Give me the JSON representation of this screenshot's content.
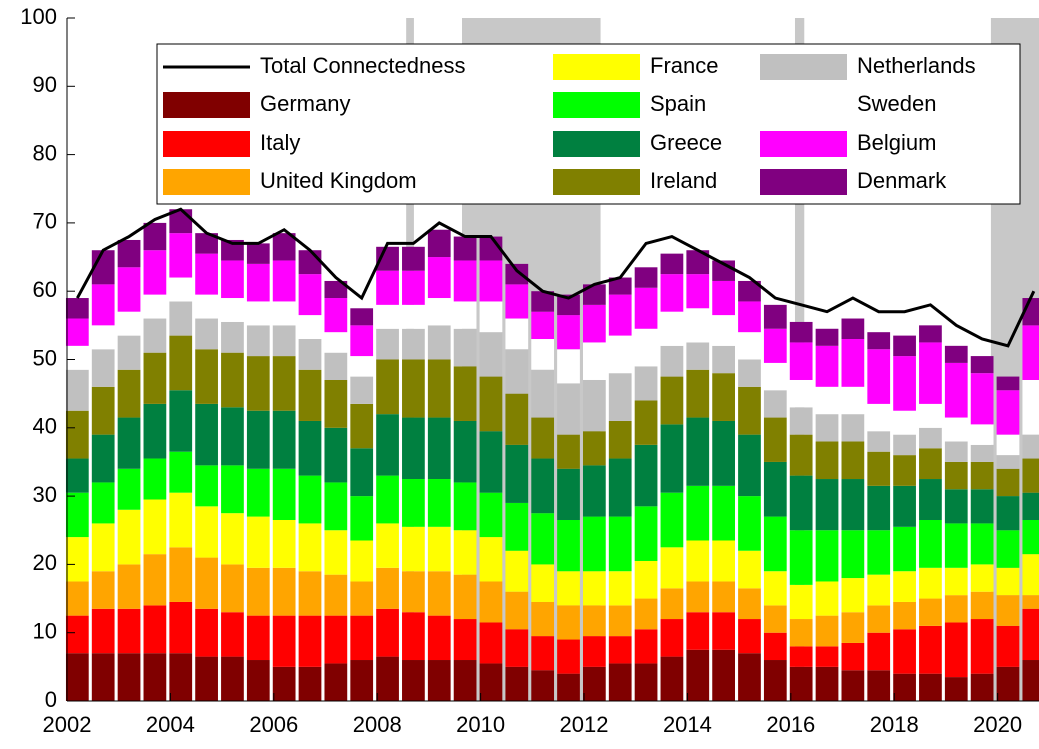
{
  "chart_data": {
    "type": "stacked-bar",
    "x": [
      2002.2,
      2002.7,
      2003.2,
      2003.7,
      2004.2,
      2004.7,
      2005.2,
      2005.7,
      2006.2,
      2006.7,
      2007.2,
      2007.7,
      2008.2,
      2008.7,
      2009.2,
      2009.7,
      2010.2,
      2010.7,
      2011.2,
      2011.7,
      2012.2,
      2012.7,
      2013.2,
      2013.7,
      2014.2,
      2014.7,
      2015.2,
      2015.7,
      2016.2,
      2016.7,
      2017.2,
      2017.7,
      2018.2,
      2018.7,
      2019.2,
      2019.7,
      2020.2,
      2020.7
    ],
    "series": [
      {
        "name": "Germany",
        "color": "#800000",
        "values": [
          7,
          7,
          7,
          7,
          7,
          6.5,
          6.5,
          6,
          5,
          5,
          5.5,
          6,
          6.5,
          6,
          6,
          6,
          5.5,
          5,
          4.5,
          4,
          5,
          5.5,
          5.5,
          6.5,
          7.5,
          7.5,
          7,
          6,
          5,
          5,
          4.5,
          4.5,
          4,
          4,
          3.5,
          4,
          5,
          6
        ]
      },
      {
        "name": "Italy",
        "color": "#ff0000",
        "values": [
          5.5,
          6.5,
          6.5,
          7,
          7.5,
          7,
          6.5,
          6.5,
          7.5,
          7.5,
          7,
          6.5,
          7,
          7,
          6.5,
          6,
          6,
          5.5,
          5,
          5,
          4.5,
          4,
          5,
          5.5,
          5.5,
          5.5,
          5,
          4,
          3,
          3,
          4,
          5.5,
          6.5,
          7,
          8,
          8,
          6,
          7.5
        ]
      },
      {
        "name": "United Kingdom",
        "color": "#ffa500",
        "values": [
          5,
          5.5,
          6.5,
          7.5,
          8,
          7.5,
          7,
          7,
          7,
          6.5,
          6,
          5,
          6,
          6,
          6.5,
          6.5,
          6,
          5.5,
          5,
          5,
          4.5,
          4.5,
          4.5,
          4.5,
          4.5,
          4.5,
          4.5,
          4,
          4,
          4.5,
          4.5,
          4,
          4,
          4,
          4,
          4,
          4.5,
          2
        ]
      },
      {
        "name": "France",
        "color": "#ffff00",
        "values": [
          6.5,
          7,
          8,
          8,
          8,
          7.5,
          7.5,
          7.5,
          7,
          7,
          6.5,
          6,
          6.5,
          6.5,
          6.5,
          6.5,
          6.5,
          6,
          5.5,
          5,
          5,
          5,
          5.5,
          6,
          6,
          6,
          5.5,
          5,
          5,
          5,
          5,
          4.5,
          4.5,
          4.5,
          4,
          4,
          4,
          6
        ]
      },
      {
        "name": "Spain",
        "color": "#00ff00",
        "values": [
          6.5,
          6,
          6,
          6,
          6,
          6,
          7,
          7,
          7.5,
          7,
          7,
          6.5,
          7,
          7,
          7,
          7,
          6.5,
          7,
          7.5,
          7.5,
          8,
          8,
          8,
          8,
          8,
          8,
          8,
          8,
          8,
          7.5,
          7,
          6.5,
          6.5,
          7,
          6.5,
          6,
          5.5,
          5
        ]
      },
      {
        "name": "Greece",
        "color": "#008040",
        "values": [
          5,
          7,
          7.5,
          8,
          9,
          9,
          8.5,
          8.5,
          8.5,
          8,
          8,
          7,
          9,
          9,
          9,
          9,
          9,
          8.5,
          8,
          7.5,
          7.5,
          8.5,
          9,
          10,
          10,
          9.5,
          9,
          8,
          8,
          7.5,
          7.5,
          6.5,
          6,
          6,
          5,
          5,
          5,
          4
        ]
      },
      {
        "name": "Ireland",
        "color": "#808000",
        "values": [
          7,
          7,
          7,
          7.5,
          8,
          8,
          8,
          8,
          8,
          7.5,
          7,
          6.5,
          8,
          8.5,
          8.5,
          8,
          8,
          7.5,
          6,
          5,
          5,
          5.5,
          6.5,
          7,
          7,
          7,
          7,
          6.5,
          6,
          5.5,
          5.5,
          5,
          4.5,
          4.5,
          4,
          4,
          4,
          5
        ]
      },
      {
        "name": "Netherlands",
        "color": "#c0c0c0",
        "values": [
          6,
          5.5,
          5,
          5,
          5,
          4.5,
          4.5,
          4.5,
          4.5,
          4.5,
          4,
          4,
          4.5,
          4.5,
          5,
          5.5,
          6.5,
          6.5,
          7,
          7.5,
          7.5,
          7,
          5,
          4.5,
          4,
          4,
          4,
          4,
          4,
          4,
          4,
          3,
          3,
          3,
          3,
          2.5,
          2,
          3.5
        ]
      },
      {
        "name": "Sweden",
        "color": "#ffffff",
        "values": [
          3.5,
          3.5,
          3.5,
          3.5,
          3.5,
          3.5,
          3.5,
          3.5,
          3.5,
          3.5,
          3,
          3,
          3.5,
          3.5,
          4,
          4,
          4.5,
          4.5,
          4.5,
          5,
          5.5,
          5.5,
          5.5,
          5,
          5,
          4.5,
          4,
          4,
          4,
          4,
          4,
          4,
          3.5,
          3.5,
          3.5,
          3,
          3,
          8
        ]
      },
      {
        "name": "Belgium",
        "color": "#ff00ff",
        "values": [
          4,
          6,
          6.5,
          6.5,
          6.5,
          6,
          5.5,
          5.5,
          6,
          6,
          5,
          4.5,
          5,
          5,
          6,
          6,
          6,
          5,
          4,
          5,
          5.5,
          6,
          6,
          5.5,
          5,
          5,
          4.5,
          5,
          5.5,
          6,
          7,
          8,
          8,
          9,
          8,
          7.5,
          6.5,
          8
        ]
      },
      {
        "name": "Denmark",
        "color": "#800080",
        "values": [
          3,
          5,
          4,
          4,
          3.5,
          3,
          3,
          3,
          4,
          3.5,
          2.5,
          2.5,
          3.5,
          3.5,
          4,
          3.5,
          3.5,
          3,
          3,
          3,
          3,
          2.5,
          3,
          3,
          3.5,
          3,
          3,
          3.5,
          3,
          2.5,
          3,
          2.5,
          3,
          2.5,
          2.5,
          2.5,
          2,
          4
        ]
      }
    ],
    "total": {
      "name": "Total Connectedness",
      "color": "#000000",
      "values": [
        59,
        66,
        68,
        70.5,
        72,
        68.5,
        67,
        67,
        69,
        66,
        62,
        59,
        67,
        67,
        70,
        68,
        68,
        63,
        60,
        59,
        61,
        62,
        67,
        68,
        66,
        64,
        62,
        59,
        58,
        57,
        59,
        57,
        57,
        58,
        55,
        53,
        52,
        60
      ]
    },
    "shaded_periods": [
      [
        2008.56,
        2008.71
      ],
      [
        2009.64,
        2012.32
      ],
      [
        2016.08,
        2016.26
      ],
      [
        2019.87,
        2020.8
      ]
    ],
    "shade_color": "#c8c8c8",
    "xlim": [
      2002,
      2020.8
    ],
    "ylim": [
      0,
      100
    ],
    "xticks": [
      2002,
      2004,
      2006,
      2008,
      2010,
      2012,
      2014,
      2016,
      2018,
      2020
    ],
    "yticks": [
      0,
      10,
      20,
      30,
      40,
      50,
      60,
      70,
      80,
      90,
      100
    ]
  }
}
